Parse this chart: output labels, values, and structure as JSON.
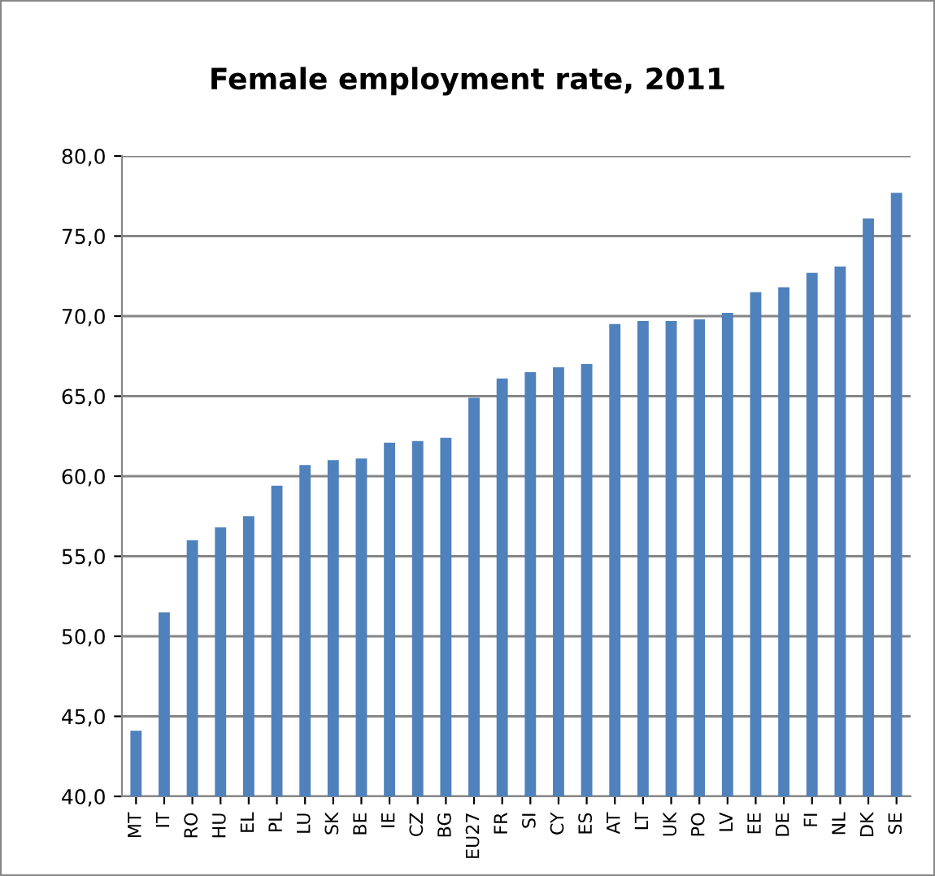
{
  "chart_data": {
    "type": "bar",
    "title": "Female employment rate, 2011",
    "categories": [
      "MT",
      "IT",
      "RO",
      "HU",
      "EL",
      "PL",
      "LU",
      "SK",
      "BE",
      "IE",
      "CZ",
      "BG",
      "EU27",
      "FR",
      "SI",
      "CY",
      "ES",
      "AT",
      "LT",
      "UK",
      "PO",
      "LV",
      "EE",
      "DE",
      "FI",
      "NL",
      "DK",
      "SE"
    ],
    "values": [
      44.1,
      51.5,
      56.0,
      56.8,
      57.5,
      59.4,
      60.7,
      61.0,
      61.1,
      62.1,
      62.2,
      62.4,
      64.9,
      66.1,
      66.5,
      66.8,
      67.0,
      69.5,
      69.7,
      69.7,
      69.8,
      70.2,
      71.5,
      71.8,
      72.7,
      73.1,
      76.1,
      77.7
    ],
    "color": "#4f81bd",
    "ylim": [
      40,
      80
    ],
    "yticks": [
      {
        "value": 40,
        "label": "40,0"
      },
      {
        "value": 45,
        "label": "45,0"
      },
      {
        "value": 50,
        "label": "50,0"
      },
      {
        "value": 55,
        "label": "55,0"
      },
      {
        "value": 60,
        "label": "60,0"
      },
      {
        "value": 65,
        "label": "65,0"
      },
      {
        "value": 70,
        "label": "70,0"
      },
      {
        "value": 75,
        "label": "75,0"
      },
      {
        "value": 80,
        "label": "80,0"
      }
    ],
    "grid": "y",
    "legend": false
  }
}
